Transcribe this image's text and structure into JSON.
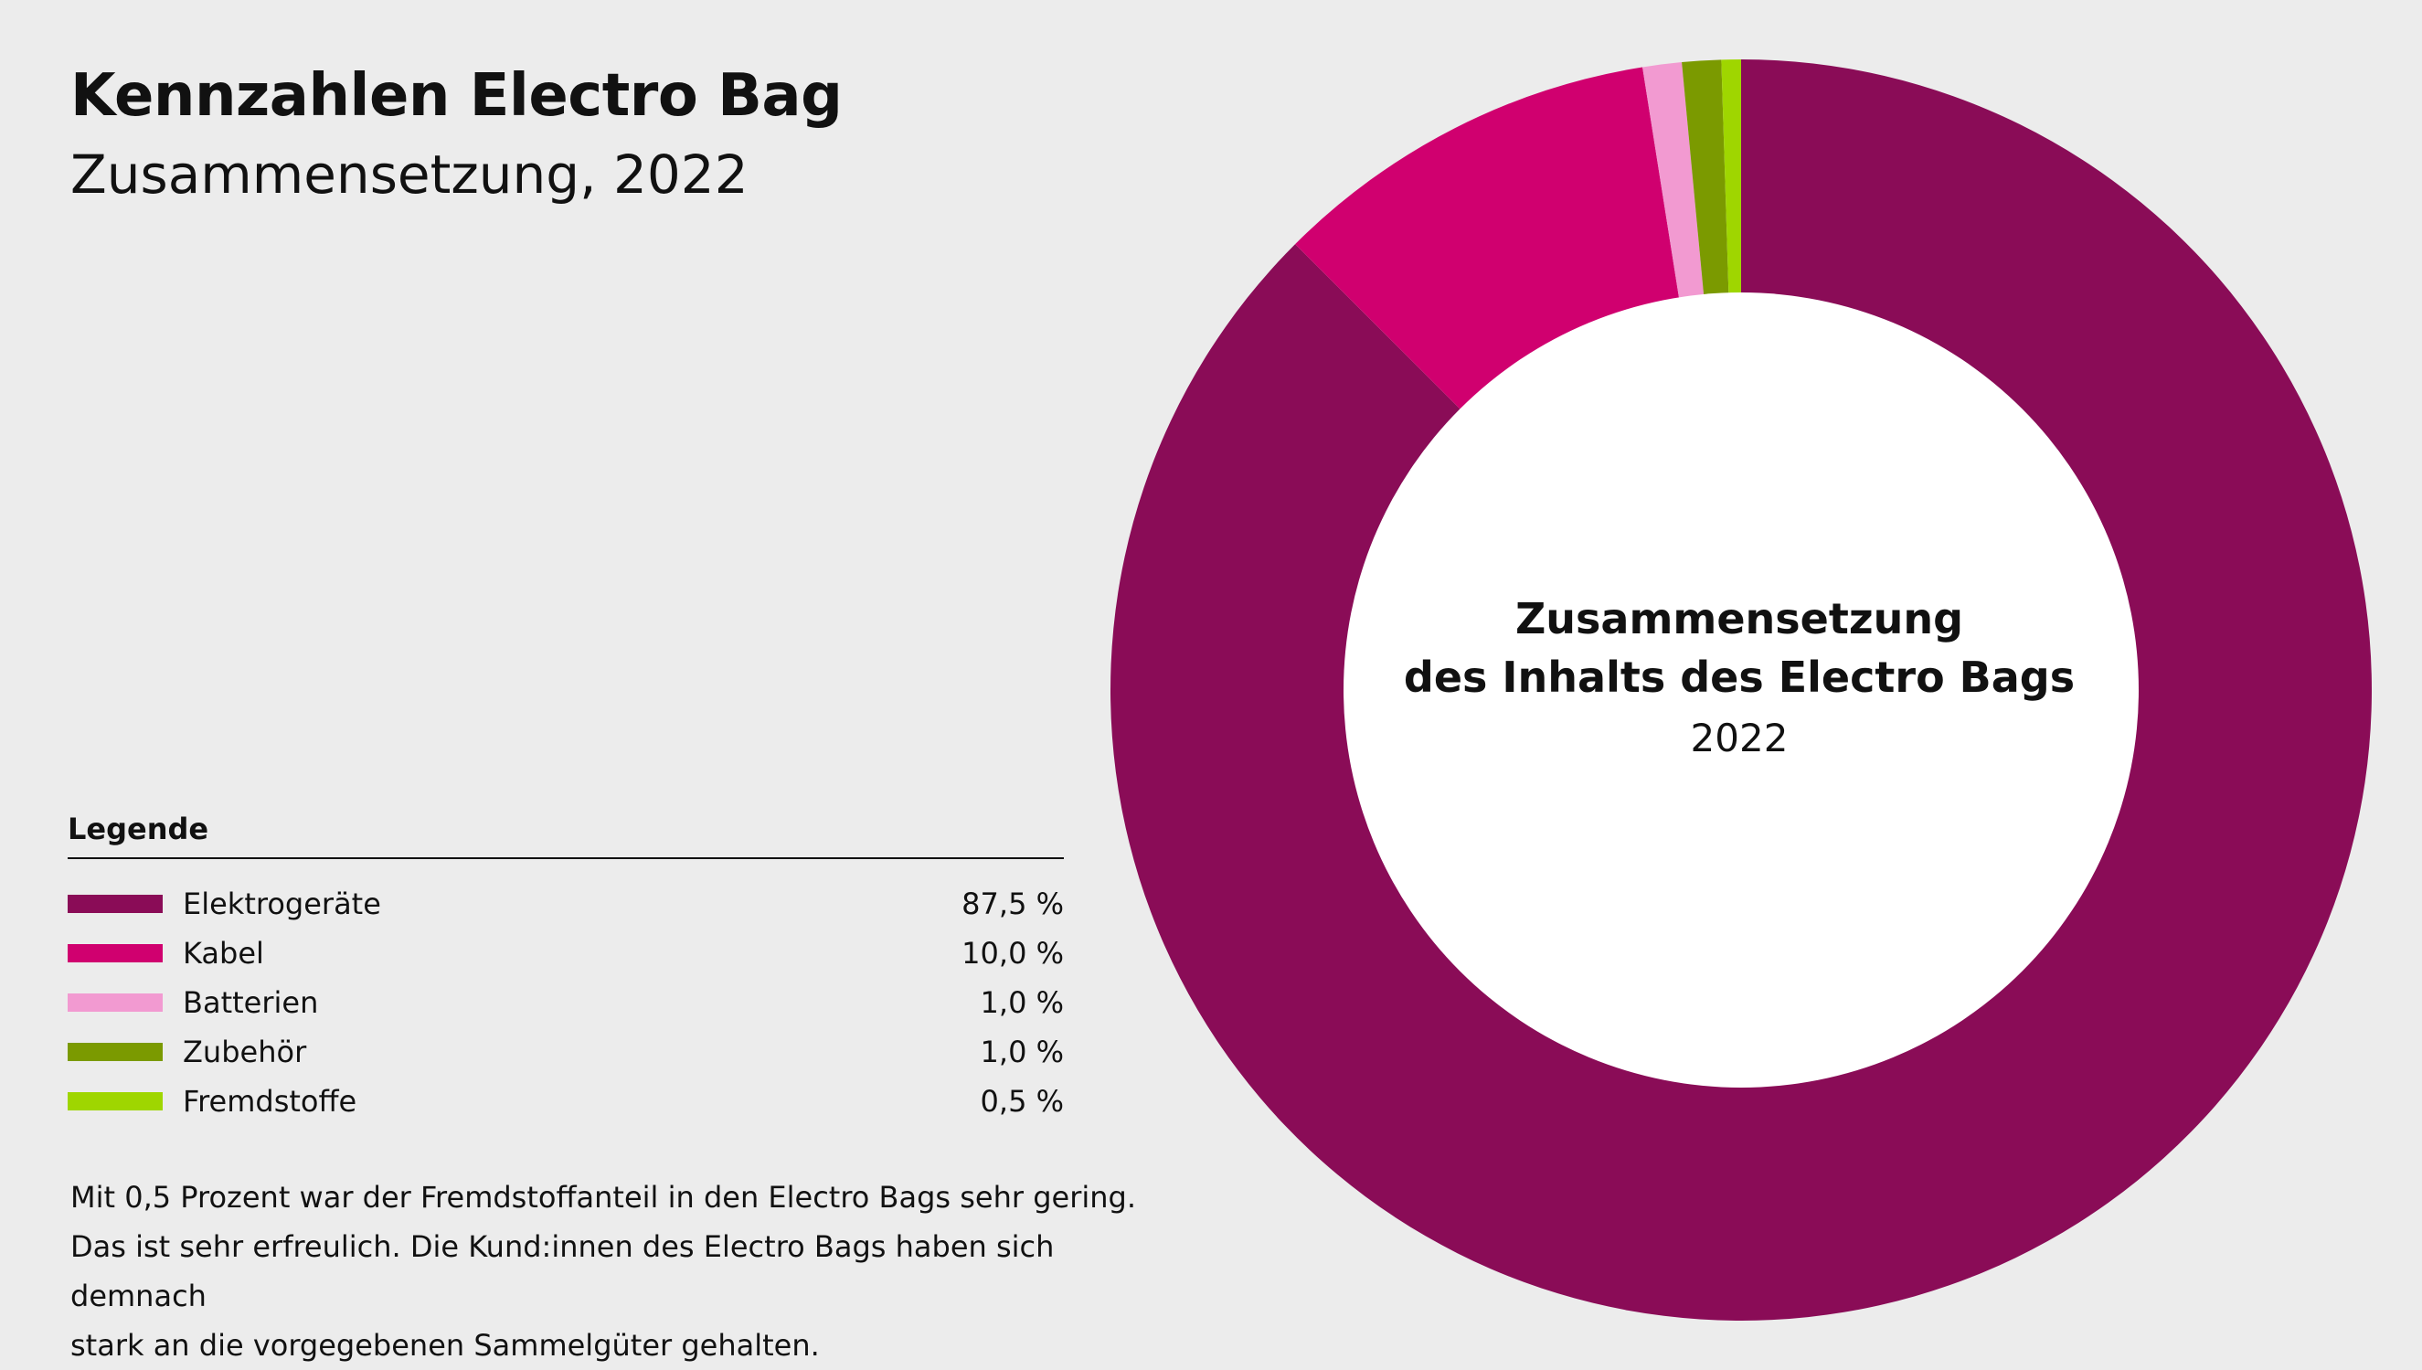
{
  "header": {
    "title": "Kennzahlen Electro Bag",
    "subtitle": "Zusammensetzung, 2022"
  },
  "legend": {
    "heading": "Legende",
    "items": [
      {
        "label": "Elektrogeräte",
        "value": "87,5 %",
        "color": "#8a0c57"
      },
      {
        "label": "Kabel",
        "value": "10,0 %",
        "color": "#d0006f"
      },
      {
        "label": "Batterien",
        "value": "1,0 %",
        "color": "#f29ad1"
      },
      {
        "label": "Zubehör",
        "value": "1,0 %",
        "color": "#7b9a00"
      },
      {
        "label": "Fremdstoffe",
        "value": "0,5 %",
        "color": "#9fd600"
      }
    ]
  },
  "note": {
    "lines": [
      "Mit 0,5 Prozent war der Fremdstoffanteil in den Electro Bags sehr gering.",
      "Das ist sehr erfreulich. Die Kund:innen des Electro Bags haben sich demnach",
      "stark an die vorgegebenen Sammelgüter gehalten."
    ]
  },
  "chart_data": {
    "type": "pie",
    "donut": true,
    "center_label": {
      "line1": "Zusammensetzung",
      "line2": "des Inhalts des Electro Bags",
      "line3": "2022"
    },
    "categories": [
      "Elektrogeräte",
      "Kabel",
      "Batterien",
      "Zubehör",
      "Fremdstoffe"
    ],
    "values": [
      87.5,
      10.0,
      1.0,
      1.0,
      0.5
    ],
    "colors": [
      "#8a0c57",
      "#d0006f",
      "#f29ad1",
      "#7b9a00",
      "#9fd600"
    ],
    "direction": "clockwise",
    "start": "top"
  }
}
